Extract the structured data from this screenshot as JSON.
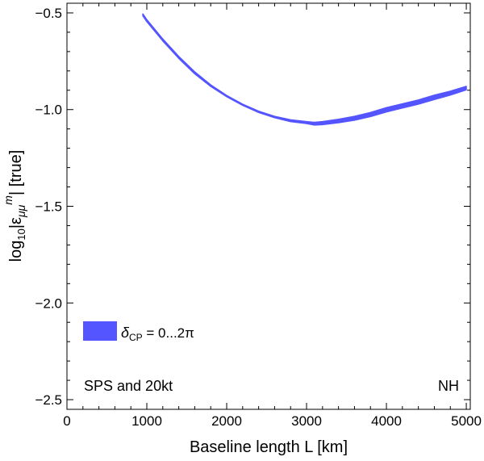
{
  "chart_data": {
    "type": "area",
    "title": "",
    "xlabel": "Baseline length L [km]",
    "ylabel": "log10|ε_μμ^m| [true]",
    "ylabel_parts": {
      "pre": "log",
      "sub10": "10",
      "mid": "|ε",
      "submumu": "μμ",
      "supm": "m",
      "post": "| [true]"
    },
    "xlim": [
      0,
      5050
    ],
    "ylim": [
      -2.55,
      -0.45
    ],
    "x_ticks": [
      0,
      1000,
      2000,
      3000,
      4000,
      5000
    ],
    "x_tick_labels": [
      "0",
      "1000",
      "2000",
      "3000",
      "4000",
      "5000"
    ],
    "y_ticks": [
      -2.5,
      -2.0,
      -1.5,
      -1.0,
      -0.5
    ],
    "y_tick_labels": [
      "−2.5",
      "−2.0",
      "−1.5",
      "−1.0",
      "−0.5"
    ],
    "grid": false,
    "series": [
      {
        "legend_parts": {
          "delta": "δ",
          "sub": "CP",
          "rest": " = 0...2π"
        },
        "color": "#5555ff",
        "x": [
          950,
          1000,
          1200,
          1400,
          1600,
          1800,
          2000,
          2200,
          2400,
          2600,
          2800,
          3000,
          3100,
          3200,
          3400,
          3600,
          3800,
          4000,
          4200,
          4400,
          4600,
          4800,
          5000
        ],
        "upper": [
          -0.505,
          -0.535,
          -0.635,
          -0.725,
          -0.805,
          -0.872,
          -0.927,
          -0.972,
          -1.008,
          -1.035,
          -1.053,
          -1.062,
          -1.066,
          -1.062,
          -1.05,
          -1.035,
          -1.015,
          -0.99,
          -0.97,
          -0.95,
          -0.925,
          -0.905,
          -0.88
        ],
        "lower": [
          -0.515,
          -0.545,
          -0.645,
          -0.735,
          -0.815,
          -0.88,
          -0.933,
          -0.978,
          -1.015,
          -1.042,
          -1.062,
          -1.072,
          -1.08,
          -1.078,
          -1.068,
          -1.055,
          -1.036,
          -1.012,
          -0.992,
          -0.972,
          -0.948,
          -0.925,
          -0.898
        ]
      }
    ],
    "legend_position": "bottom-left",
    "annotations": [
      "SPS and 20kt",
      "NH"
    ]
  }
}
